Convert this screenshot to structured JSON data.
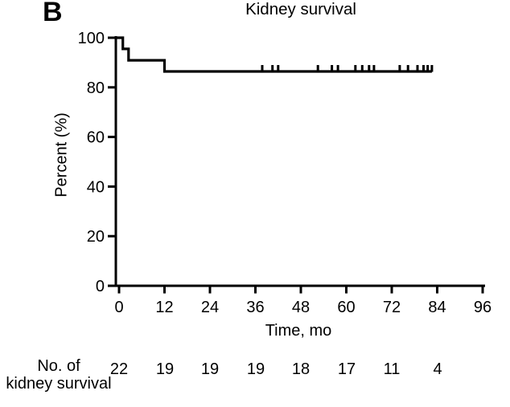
{
  "panel_label": "B",
  "title": "Kidney survival",
  "colors": {
    "ink": "#000000",
    "background": "#ffffff"
  },
  "chart_data": {
    "type": "line",
    "subtype": "kaplan_meier_step_curve",
    "title": "Kidney survival",
    "xlabel": "Time, mo",
    "ylabel": "Percent (%)",
    "xlim": [
      0,
      96
    ],
    "ylim": [
      0,
      100
    ],
    "xticks": [
      0,
      12,
      24,
      36,
      48,
      60,
      72,
      84,
      96
    ],
    "yticks": [
      100,
      80,
      60,
      40,
      20,
      0
    ],
    "grid": false,
    "legend": "none",
    "series": [
      {
        "name": "Kidney survival",
        "color": "#000000",
        "steps": [
          {
            "t": 0,
            "pct": 100
          },
          {
            "t": 1,
            "pct": 95.5
          },
          {
            "t": 2.5,
            "pct": 90.9
          },
          {
            "t": 12,
            "pct": 86.4
          }
        ],
        "end_t": 82.6,
        "censor_t": [
          37.8,
          40.5,
          42,
          52.5,
          56.2,
          57.8,
          62.4,
          64.2,
          66,
          67.3,
          74.1,
          76.3,
          78.8,
          80.4,
          81.5,
          82.6
        ]
      }
    ],
    "at_risk": {
      "label_line1": "No. of",
      "label_line2": "kidney survival",
      "times": [
        0,
        12,
        24,
        36,
        48,
        60,
        72,
        84
      ],
      "counts": [
        22,
        19,
        19,
        19,
        18,
        17,
        11,
        4
      ]
    }
  }
}
